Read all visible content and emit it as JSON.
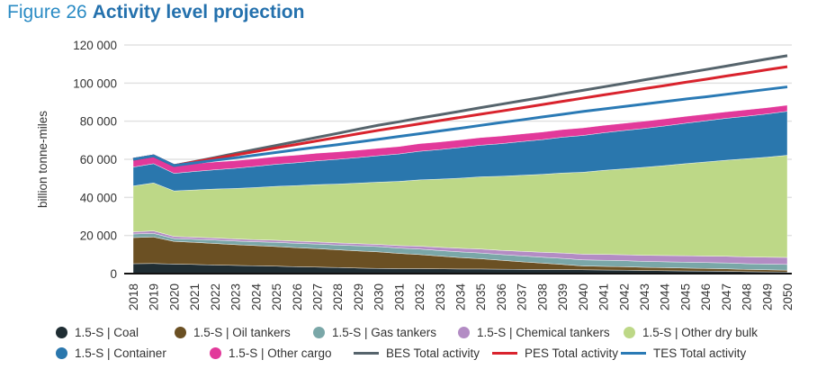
{
  "figure": {
    "number": "Figure 26",
    "title": "Activity level projection"
  },
  "chart_data": {
    "type": "area",
    "stacked": true,
    "ylabel": "billion tonne-miles",
    "xlabel": "",
    "ylim": [
      0,
      120000
    ],
    "yticks": [
      "0",
      "20 000",
      "40 000",
      "60 000",
      "80 000",
      "100 000",
      "120 000"
    ],
    "ytick_values": [
      0,
      20000,
      40000,
      60000,
      80000,
      100000,
      120000
    ],
    "grid": true,
    "legend_position": "bottom",
    "x": [
      2018,
      2019,
      2020,
      2021,
      2022,
      2023,
      2024,
      2025,
      2026,
      2027,
      2028,
      2029,
      2030,
      2031,
      2032,
      2033,
      2034,
      2035,
      2036,
      2037,
      2038,
      2039,
      2040,
      2041,
      2042,
      2043,
      2044,
      2045,
      2046,
      2047,
      2048,
      2049,
      2050
    ],
    "series": [
      {
        "name": "1.5-S | Coal",
        "kind": "area",
        "color": "#1f2d33",
        "values": [
          5200,
          5300,
          5000,
          4800,
          4500,
          4300,
          4100,
          3900,
          3600,
          3400,
          3200,
          2900,
          2700,
          2600,
          2600,
          2500,
          2400,
          2400,
          2300,
          2200,
          2100,
          2100,
          2000,
          1900,
          1800,
          1600,
          1500,
          1400,
          1300,
          1200,
          1000,
          900,
          800
        ]
      },
      {
        "name": "1.5-S | Oil tankers",
        "kind": "area",
        "color": "#6b5023",
        "values": [
          13700,
          13900,
          11900,
          11600,
          11300,
          10900,
          10600,
          10300,
          10000,
          9700,
          9300,
          9000,
          8700,
          8000,
          7400,
          6700,
          6000,
          5400,
          4700,
          4000,
          3400,
          2700,
          2000,
          1900,
          1800,
          1700,
          1600,
          1500,
          1400,
          1300,
          1200,
          1100,
          1000
        ]
      },
      {
        "name": "1.5-S | Gas tankers",
        "kind": "area",
        "color": "#7aa7a8",
        "values": [
          1900,
          1900,
          1500,
          1600,
          1800,
          1900,
          2000,
          2200,
          2300,
          2400,
          2500,
          2700,
          2800,
          2800,
          2900,
          2900,
          3000,
          3000,
          3000,
          3100,
          3100,
          3200,
          3200,
          3200,
          3200,
          3100,
          3100,
          3100,
          3100,
          3100,
          3000,
          3000,
          3000
        ]
      },
      {
        "name": "1.5-S | Chemical tankers",
        "kind": "area",
        "color": "#b38cc4",
        "values": [
          1100,
          1300,
          1100,
          1100,
          1100,
          1100,
          1100,
          1100,
          1100,
          1100,
          1100,
          1100,
          1100,
          1300,
          1500,
          1700,
          1900,
          2100,
          2200,
          2400,
          2600,
          2800,
          3000,
          3100,
          3100,
          3200,
          3300,
          3400,
          3400,
          3500,
          3600,
          3600,
          3700
        ]
      },
      {
        "name": "1.5-S | Other dry bulk",
        "kind": "area",
        "color": "#bdd887",
        "values": [
          24100,
          25200,
          23900,
          24800,
          25700,
          26500,
          27400,
          28300,
          29200,
          30100,
          30900,
          31800,
          32700,
          33700,
          34800,
          35800,
          36800,
          37900,
          38900,
          39900,
          40900,
          42000,
          43000,
          44100,
          45100,
          46200,
          47200,
          48300,
          49400,
          50400,
          51500,
          52500,
          53600
        ]
      },
      {
        "name": "1.5-S | Container",
        "kind": "area",
        "color": "#2a77ad",
        "values": [
          9900,
          10100,
          9200,
          9700,
          10100,
          10600,
          11100,
          11600,
          12000,
          12500,
          13000,
          13400,
          13900,
          14400,
          15000,
          15500,
          16100,
          16600,
          17100,
          17700,
          18200,
          18800,
          19300,
          19700,
          20100,
          20400,
          20800,
          21200,
          21600,
          22000,
          22300,
          22700,
          23100
        ]
      },
      {
        "name": "1.5-S | Other cargo",
        "kind": "area",
        "color": "#e2399a",
        "values": [
          4100,
          4100,
          4100,
          4100,
          4100,
          4000,
          4000,
          4000,
          4000,
          4000,
          3900,
          3900,
          3900,
          3900,
          4000,
          4000,
          4000,
          4000,
          4000,
          4000,
          4000,
          4000,
          4000,
          3900,
          3800,
          3800,
          3700,
          3600,
          3500,
          3400,
          3400,
          3300,
          3200
        ]
      },
      {
        "name": "BES Total activity",
        "kind": "line",
        "color": "#56646c",
        "values": [
          60000,
          61800,
          56700,
          58800,
          60900,
          63100,
          65200,
          67300,
          69400,
          71500,
          73600,
          75800,
          77900,
          79700,
          81600,
          83400,
          85200,
          87100,
          88900,
          90700,
          92500,
          94400,
          96200,
          98000,
          99800,
          101700,
          103500,
          105300,
          107100,
          108900,
          110800,
          112600,
          114400
        ]
      },
      {
        "name": "PES Total activity",
        "kind": "line",
        "color": "#d9232d",
        "values": [
          60000,
          61800,
          56700,
          58600,
          60400,
          62300,
          64100,
          66000,
          67800,
          69700,
          71500,
          73400,
          75200,
          76900,
          78600,
          80300,
          82000,
          83700,
          85300,
          87000,
          88700,
          90400,
          92100,
          93800,
          95400,
          97100,
          98700,
          100400,
          102000,
          103700,
          105300,
          107000,
          108600
        ]
      },
      {
        "name": "TES Total activity",
        "kind": "line",
        "color": "#2a7ab5",
        "values": [
          60000,
          61800,
          56700,
          58100,
          59500,
          60800,
          62200,
          63600,
          65000,
          66400,
          67700,
          69100,
          70500,
          72000,
          73400,
          74900,
          76300,
          77800,
          79300,
          80700,
          82200,
          83600,
          85100,
          86400,
          87700,
          89000,
          90300,
          91600,
          92800,
          94100,
          95400,
          96700,
          98000
        ]
      }
    ]
  }
}
